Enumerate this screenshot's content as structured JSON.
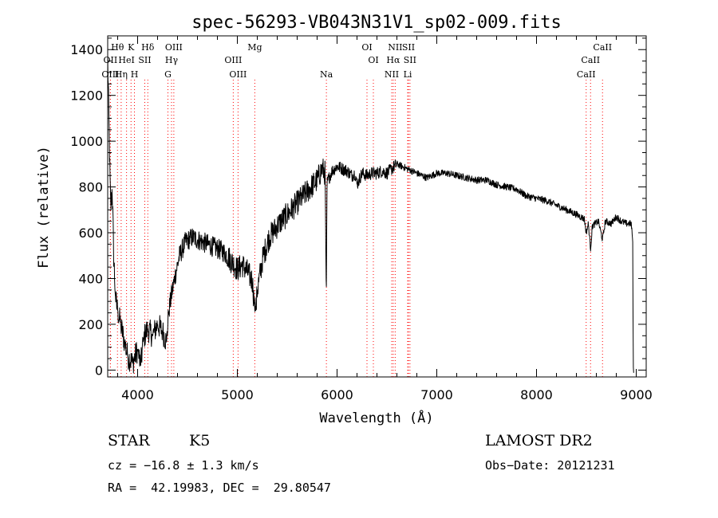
{
  "chart_data": {
    "type": "line",
    "title": "spec-56293-VB043N31V1_sp02-009.fits",
    "xlabel": "Wavelength (Å)",
    "ylabel": "Flux (relative)",
    "xlim": [
      3700,
      9100
    ],
    "ylim": [
      -30,
      1460
    ],
    "x_ticks": [
      4000,
      5000,
      6000,
      7000,
      8000,
      9000
    ],
    "y_ticks": [
      0,
      200,
      400,
      600,
      800,
      1000,
      1200,
      1400
    ],
    "grid": false,
    "line_color": "#000000",
    "marker_color": "#ff0000",
    "spectrum_anchor_points": [
      [
        3700,
        1350
      ],
      [
        3710,
        1150
      ],
      [
        3720,
        900
      ],
      [
        3730,
        700
      ],
      [
        3745,
        800
      ],
      [
        3760,
        500
      ],
      [
        3780,
        300
      ],
      [
        3800,
        260
      ],
      [
        3830,
        200
      ],
      [
        3870,
        120
      ],
      [
        3900,
        60
      ],
      [
        3950,
        30
      ],
      [
        4000,
        90
      ],
      [
        4030,
        20
      ],
      [
        4060,
        140
      ],
      [
        4100,
        180
      ],
      [
        4150,
        150
      ],
      [
        4200,
        200
      ],
      [
        4250,
        170
      ],
      [
        4290,
        120
      ],
      [
        4310,
        250
      ],
      [
        4340,
        330
      ],
      [
        4380,
        420
      ],
      [
        4420,
        500
      ],
      [
        4480,
        560
      ],
      [
        4550,
        580
      ],
      [
        4650,
        560
      ],
      [
        4750,
        540
      ],
      [
        4850,
        520
      ],
      [
        4900,
        500
      ],
      [
        4950,
        470
      ],
      [
        5000,
        440
      ],
      [
        5050,
        460
      ],
      [
        5100,
        430
      ],
      [
        5150,
        390
      ],
      [
        5170,
        290
      ],
      [
        5185,
        260
      ],
      [
        5200,
        350
      ],
      [
        5260,
        500
      ],
      [
        5320,
        580
      ],
      [
        5400,
        630
      ],
      [
        5500,
        680
      ],
      [
        5600,
        730
      ],
      [
        5700,
        780
      ],
      [
        5800,
        830
      ],
      [
        5850,
        880
      ],
      [
        5880,
        860
      ],
      [
        5892,
        300
      ],
      [
        5900,
        820
      ],
      [
        5950,
        870
      ],
      [
        6000,
        890
      ],
      [
        6050,
        880
      ],
      [
        6100,
        870
      ],
      [
        6150,
        850
      ],
      [
        6180,
        860
      ],
      [
        6200,
        810
      ],
      [
        6250,
        860
      ],
      [
        6300,
        850
      ],
      [
        6350,
        860
      ],
      [
        6400,
        860
      ],
      [
        6450,
        870
      ],
      [
        6500,
        860
      ],
      [
        6550,
        880
      ],
      [
        6600,
        900
      ],
      [
        6700,
        880
      ],
      [
        6800,
        860
      ],
      [
        6900,
        840
      ],
      [
        7000,
        860
      ],
      [
        7100,
        860
      ],
      [
        7200,
        850
      ],
      [
        7300,
        840
      ],
      [
        7400,
        830
      ],
      [
        7500,
        830
      ],
      [
        7600,
        810
      ],
      [
        7700,
        800
      ],
      [
        7800,
        790
      ],
      [
        7900,
        760
      ],
      [
        8000,
        750
      ],
      [
        8100,
        740
      ],
      [
        8200,
        720
      ],
      [
        8300,
        700
      ],
      [
        8400,
        680
      ],
      [
        8480,
        660
      ],
      [
        8498,
        600
      ],
      [
        8520,
        640
      ],
      [
        8542,
        530
      ],
      [
        8560,
        630
      ],
      [
        8620,
        650
      ],
      [
        8662,
        570
      ],
      [
        8690,
        650
      ],
      [
        8750,
        640
      ],
      [
        8800,
        670
      ],
      [
        8850,
        650
      ],
      [
        8900,
        640
      ],
      [
        8950,
        640
      ],
      [
        8965,
        560
      ],
      [
        8970,
        20
      ],
      [
        8975,
        -20
      ]
    ],
    "absorption_lines": [
      {
        "label": "Hθ",
        "wavelength": 3798,
        "row": 1
      },
      {
        "label": "K",
        "wavelength": 3934,
        "row": 1
      },
      {
        "label": "Hδ",
        "wavelength": 4102,
        "row": 1
      },
      {
        "label": "OII",
        "wavelength": 3727,
        "row": 2
      },
      {
        "label": "HeI",
        "wavelength": 3889,
        "row": 2
      },
      {
        "label": "SII",
        "wavelength": 4072,
        "row": 2
      },
      {
        "label": "OIII",
        "wavelength": 3727,
        "row": 3
      },
      {
        "label": "Hη",
        "wavelength": 3835,
        "row": 3
      },
      {
        "label": "H",
        "wavelength": 3968,
        "row": 3
      },
      {
        "label": "OIII",
        "wavelength": 4363,
        "row": 1
      },
      {
        "label": "Hγ",
        "wavelength": 4340,
        "row": 2
      },
      {
        "label": "G",
        "wavelength": 4304,
        "row": 3
      },
      {
        "label": "OIII",
        "wavelength": 4959,
        "row": 2
      },
      {
        "label": "OIII",
        "wavelength": 5007,
        "row": 3
      },
      {
        "label": "Mg",
        "wavelength": 5175,
        "row": 1
      },
      {
        "label": "Na",
        "wavelength": 5893,
        "row": 3
      },
      {
        "label": "OI",
        "wavelength": 6300,
        "row": 1
      },
      {
        "label": "OI",
        "wavelength": 6364,
        "row": 2
      },
      {
        "label": "NII",
        "wavelength": 6583,
        "row": 1
      },
      {
        "label": "SII",
        "wavelength": 6716,
        "row": 1
      },
      {
        "label": "Hα",
        "wavelength": 6563,
        "row": 2
      },
      {
        "label": "SII",
        "wavelength": 6731,
        "row": 2
      },
      {
        "label": "NII",
        "wavelength": 6548,
        "row": 3
      },
      {
        "label": "Li",
        "wavelength": 6708,
        "row": 3
      },
      {
        "label": "CaII",
        "wavelength": 8662,
        "row": 1
      },
      {
        "label": "CaII",
        "wavelength": 8542,
        "row": 2
      },
      {
        "label": "CaII",
        "wavelength": 8498,
        "row": 3
      }
    ]
  },
  "info": {
    "class_label": "STAR",
    "subclass": "K5",
    "survey": "LAMOST DR2",
    "redshift_text": "cz = −16.8 ± 1.3 km/s",
    "obs_date_text": "Obs−Date: 20121231",
    "coords_text": "RA =  42.19983, DEC =  29.80547"
  }
}
